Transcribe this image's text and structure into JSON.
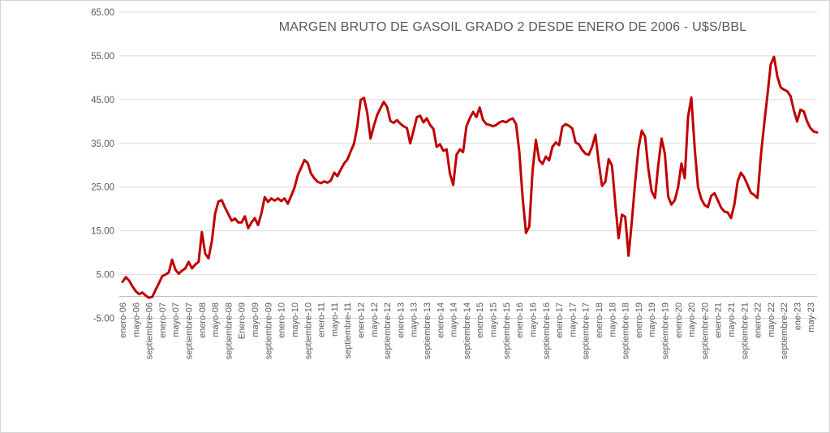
{
  "window": {
    "background": "#ffffff",
    "frame_border_color": "#d4d4d4"
  },
  "chart_data": {
    "type": "line",
    "title": "MARGEN BRUTO DE GASOIL GRADO 2 DESDE ENERO DE 2006 - U$S/BBL",
    "title_color": "#595959",
    "line_color": "#C00000",
    "grid_color": "#D9D9D9",
    "axis_line_color": "#BFBFBF",
    "tick_label_color": "#595959",
    "legend": false,
    "grid": true,
    "y_axis": {
      "min": -5,
      "max": 65,
      "crosses_at": 0
    },
    "y_ticks": [
      65,
      55,
      45,
      35,
      25,
      15,
      5,
      -5
    ],
    "y_tick_labels": [
      "65.00",
      "55.00",
      "45.00",
      "35.00",
      "25.00",
      "15.00",
      "5.00",
      "-5.00"
    ],
    "x_tick_step": 4,
    "x_tick_labels": [
      "enero-06",
      "mayo-06",
      "septiembre-06",
      "enero-07",
      "mayo-07",
      "septiembre-07",
      "enero-08",
      "mayo-08",
      "septiembre-08",
      "Enero-09",
      "mayo-09",
      "septiembre-09",
      "enero-10",
      "mayo-10",
      "septiembre-10",
      "enero-11",
      "mayo-11",
      "septiembre-11",
      "enero-12",
      "mayo-12",
      "septiembre-12",
      "enero-13",
      "mayo-13",
      "septiembre-13",
      "enero-14",
      "mayo-14",
      "septiembre-14",
      "enero-15",
      "mayo-15",
      "septiembre-15",
      "enero-16",
      "mayo-16",
      "septiembre-16",
      "enero-17",
      "mayo-17",
      "septiembre-17",
      "enero-18",
      "mayo-18",
      "septiembre-18",
      "enero-19",
      "mayo-19",
      "septiembre-19",
      "enero-20",
      "mayo-20",
      "septiembre-20",
      "enero-21",
      "mayo-21",
      "septiembre-21",
      "enero-22",
      "mayo-22",
      "septiembre-22",
      "ene-23",
      "may-23"
    ],
    "x_start": "enero-06",
    "x_end_extends_months_past_last_label": 2,
    "values": [
      3.3,
      4.4,
      3.6,
      2.3,
      1.2,
      0.5,
      0.9,
      0.2,
      -0.3,
      -0.1,
      1.5,
      3.0,
      4.6,
      5.0,
      5.5,
      8.4,
      6.1,
      5.2,
      5.9,
      6.4,
      7.9,
      6.4,
      7.3,
      7.9,
      14.7,
      9.8,
      8.7,
      12.6,
      18.9,
      21.7,
      22.0,
      20.3,
      18.8,
      17.3,
      17.8,
      16.9,
      16.9,
      18.3,
      15.6,
      16.9,
      17.9,
      16.3,
      19.0,
      22.7,
      21.6,
      22.4,
      21.9,
      22.4,
      21.8,
      22.4,
      21.2,
      23.0,
      24.9,
      27.7,
      29.4,
      31.2,
      30.5,
      28.1,
      27.0,
      26.2,
      25.9,
      26.3,
      26.0,
      26.5,
      28.3,
      27.5,
      29.0,
      30.4,
      31.3,
      33.2,
      34.9,
      38.9,
      44.9,
      45.4,
      42.0,
      36.1,
      39.0,
      41.5,
      43.0,
      44.5,
      43.3,
      40.1,
      39.7,
      40.3,
      39.5,
      38.9,
      38.5,
      35.0,
      37.9,
      41.0,
      41.3,
      39.8,
      40.7,
      39.2,
      38.3,
      34.2,
      34.8,
      33.3,
      33.6,
      28.1,
      25.5,
      32.4,
      33.6,
      33.0,
      38.9,
      40.7,
      42.2,
      41.0,
      43.2,
      40.4,
      39.4,
      39.2,
      38.9,
      39.2,
      39.8,
      40.1,
      39.8,
      40.4,
      40.7,
      39.4,
      33.0,
      22.5,
      14.5,
      16.0,
      28.7,
      35.8,
      31.2,
      30.3,
      32.0,
      31.1,
      34.2,
      35.2,
      34.6,
      38.8,
      39.4,
      39.0,
      38.4,
      35.2,
      34.8,
      33.5,
      32.6,
      32.4,
      34.2,
      37.0,
      30.5,
      25.3,
      26.2,
      31.4,
      29.9,
      21.2,
      13.3,
      18.7,
      18.2,
      9.3,
      17.0,
      26.0,
      33.8,
      37.9,
      36.6,
      29.2,
      24.0,
      22.5,
      30.0,
      36.1,
      32.6,
      22.8,
      21.0,
      22.0,
      25.0,
      30.4,
      27.0,
      41.0,
      45.5,
      34.0,
      25.0,
      22.3,
      20.9,
      20.4,
      23.0,
      23.6,
      22.0,
      20.3,
      19.4,
      19.2,
      17.9,
      21.0,
      26.3,
      28.3,
      27.2,
      25.5,
      23.7,
      23.2,
      22.5,
      32.0,
      39.3,
      46.0,
      53.0,
      54.8,
      50.3,
      47.8,
      47.3,
      46.9,
      45.8,
      42.5,
      40.0,
      42.7,
      42.3,
      40.0,
      38.5,
      37.7,
      37.5
    ]
  }
}
